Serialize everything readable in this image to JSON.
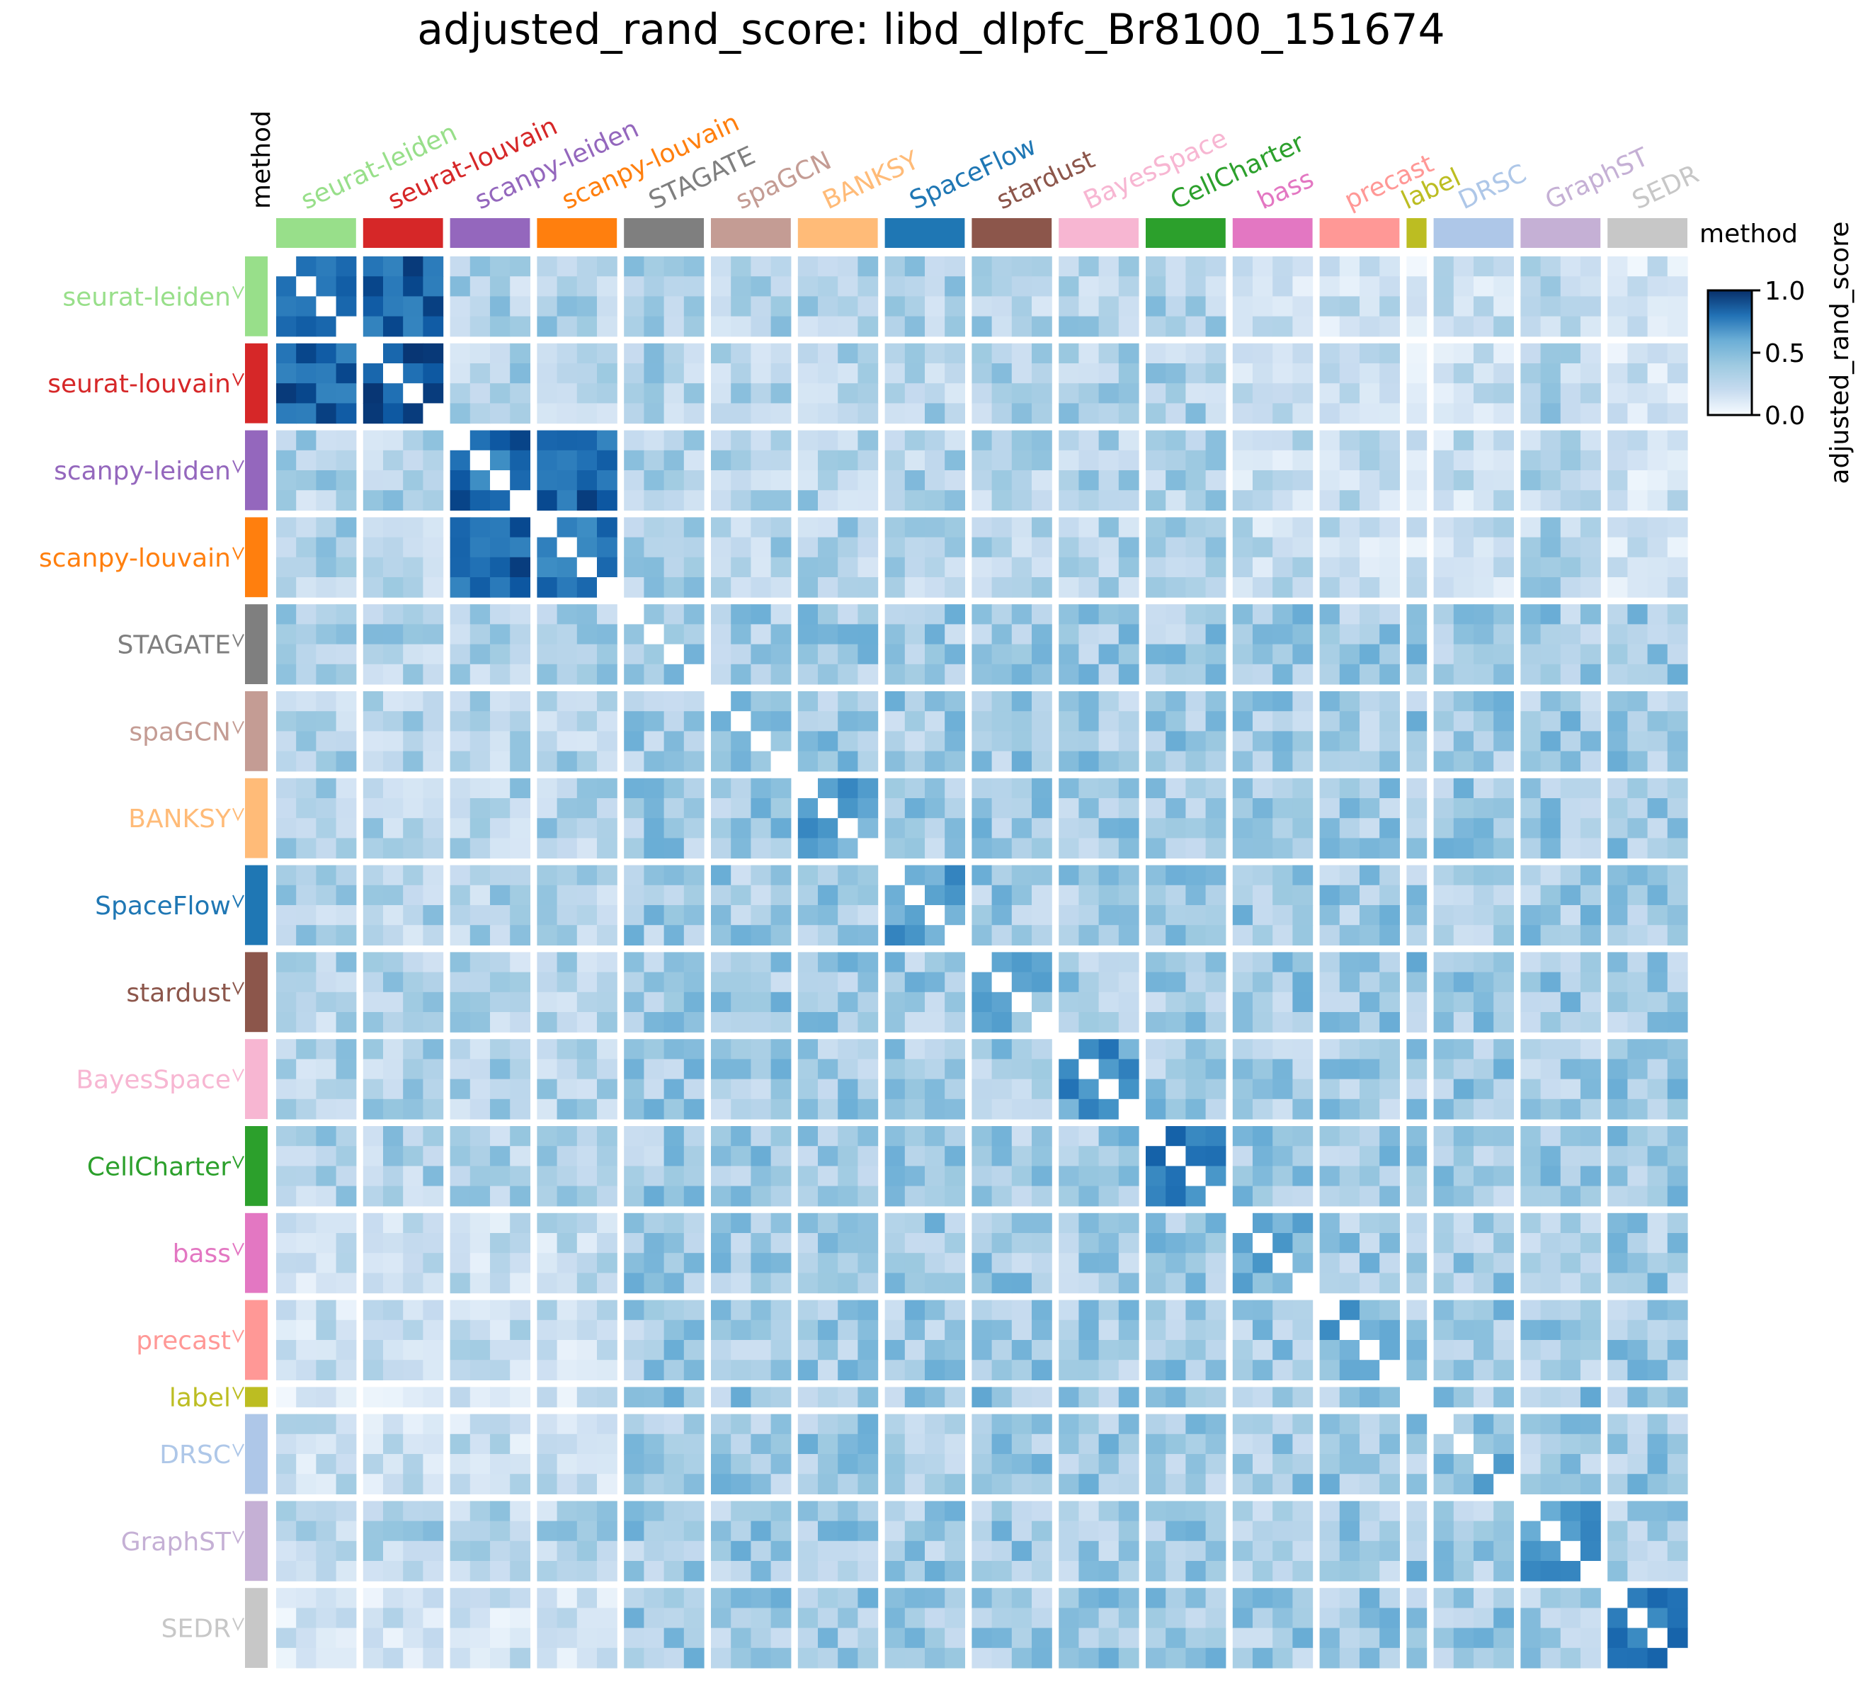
{
  "chart_data": {
    "type": "heatmap",
    "title": "adjusted_rand_score: libd_dlpfc_Br8100_151674",
    "annotation_label": "method",
    "legend_label": "method",
    "colorbar": {
      "label": "adjusted_rand_score",
      "range": [
        0.0,
        1.0
      ],
      "ticks": [
        "0.0",
        "0.5",
        "1.0"
      ],
      "cmap": "Blues"
    },
    "groups": [
      {
        "name": "seurat-leiden",
        "size": 4,
        "color": "#98df8a",
        "intra": 0.85
      },
      {
        "name": "seurat-louvain",
        "size": 4,
        "color": "#d62728",
        "intra": 0.88
      },
      {
        "name": "scanpy-leiden",
        "size": 4,
        "color": "#9467bd",
        "intra": 0.78
      },
      {
        "name": "scanpy-louvain",
        "size": 4,
        "color": "#ff7f0e",
        "intra": 0.78
      },
      {
        "name": "STAGATE",
        "size": 4,
        "color": "#7f7f7f",
        "intra": 0.4
      },
      {
        "name": "spaGCN",
        "size": 4,
        "color": "#c49c94",
        "intra": 0.45
      },
      {
        "name": "BANKSY",
        "size": 4,
        "color": "#ffbb78",
        "intra": 0.55
      },
      {
        "name": "SpaceFlow",
        "size": 4,
        "color": "#1f77b4",
        "intra": 0.55
      },
      {
        "name": "stardust",
        "size": 4,
        "color": "#8c564b",
        "intra": 0.45
      },
      {
        "name": "BayesSpace",
        "size": 4,
        "color": "#f7b6d2",
        "intra": 0.6
      },
      {
        "name": "CellCharter",
        "size": 4,
        "color": "#2ca02c",
        "intra": 0.7
      },
      {
        "name": "bass",
        "size": 4,
        "color": "#e377c2",
        "intra": 0.55
      },
      {
        "name": "precast",
        "size": 4,
        "color": "#ff9896",
        "intra": 0.5
      },
      {
        "name": "label",
        "size": 1,
        "color": "#bcbd22",
        "intra": 0.0
      },
      {
        "name": "DRSC",
        "size": 4,
        "color": "#aec7e8",
        "intra": 0.45
      },
      {
        "name": "GraphST",
        "size": 4,
        "color": "#c5b0d5",
        "intra": 0.55
      },
      {
        "name": "SEDR",
        "size": 4,
        "color": "#c7c7c7",
        "intra": 0.7
      }
    ]
  }
}
